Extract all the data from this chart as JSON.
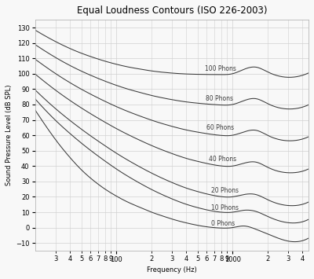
{
  "title": "Equal Loudness Contours (ISO 226-2003)",
  "xlabel": "Frequency (Hz)",
  "ylabel": "Sound Pressure Level (dB SPL)",
  "xlim": [
    20,
    4500
  ],
  "ylim": [
    -15,
    135
  ],
  "yticks": [
    -10,
    0,
    10,
    20,
    30,
    40,
    50,
    60,
    70,
    80,
    90,
    100,
    110,
    120,
    130
  ],
  "phon_levels": [
    0,
    10,
    20,
    40,
    60,
    80,
    100
  ],
  "line_color": "#3a3a3a",
  "bg_color": "#f8f8f8",
  "grid_color": "#d0d0d0",
  "label_color": "#3a3a3a",
  "label_fontsize": 5.5,
  "title_fontsize": 8.5,
  "axis_fontsize": 6.0
}
